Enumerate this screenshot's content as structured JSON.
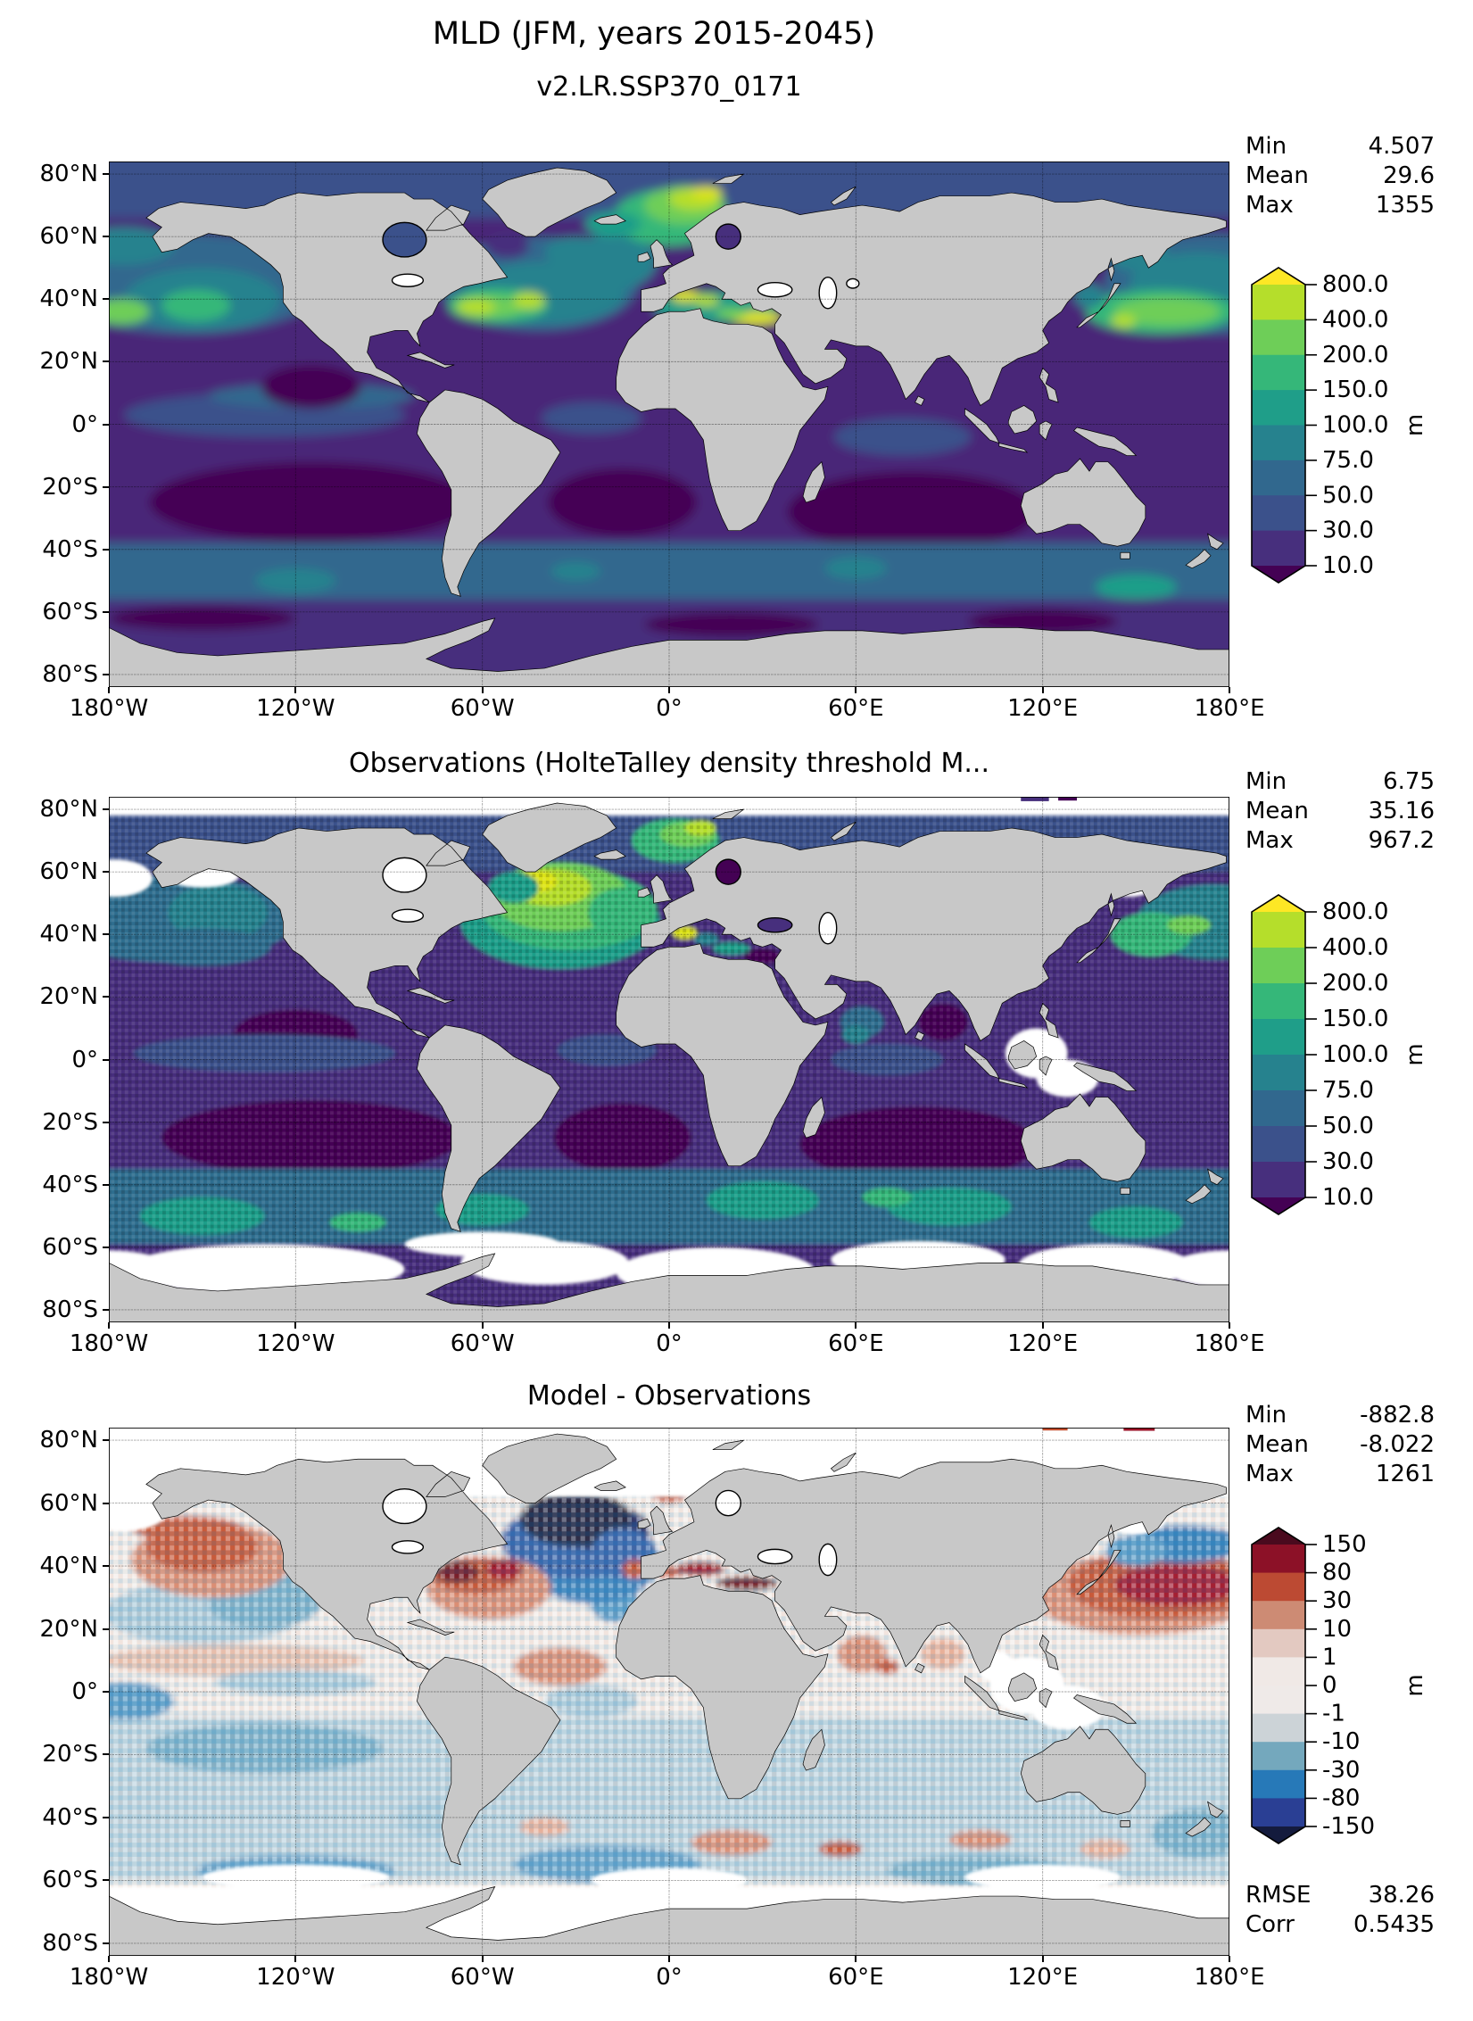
{
  "figure": {
    "title": "MLD (JFM, years 2015-2045)"
  },
  "axis": {
    "x_tick_labels": [
      "180°W",
      "120°W",
      "60°W",
      "0°",
      "60°E",
      "120°E",
      "180°E"
    ],
    "y_tick_labels": [
      "80°N",
      "60°N",
      "40°N",
      "20°N",
      "0°",
      "20°S",
      "40°S",
      "60°S",
      "80°S"
    ]
  },
  "panels": [
    {
      "id": "model",
      "title": "v2.LR.SSP370_0171",
      "stats": [
        [
          "Min",
          "4.507"
        ],
        [
          "Mean",
          "29.6"
        ],
        [
          "Max",
          "1355"
        ]
      ],
      "colorbar": "mld"
    },
    {
      "id": "obs",
      "title": "Observations (HolteTalley density threshold M...",
      "stats": [
        [
          "Min",
          "6.75"
        ],
        [
          "Mean",
          "35.16"
        ],
        [
          "Max",
          "967.2"
        ]
      ],
      "colorbar": "mld"
    },
    {
      "id": "diff",
      "title": "Model - Observations",
      "stats": [
        [
          "Min",
          "-882.8"
        ],
        [
          "Mean",
          "-8.022"
        ],
        [
          "Max",
          "1261"
        ]
      ],
      "extra_stats": [
        [
          "RMSE",
          "38.26"
        ],
        [
          "Corr",
          "0.5435"
        ]
      ],
      "colorbar": "diff"
    }
  ],
  "colorbars": {
    "mld": {
      "unit": "m",
      "tick_labels": [
        "800.0",
        "400.0",
        "200.0",
        "150.0",
        "100.0",
        "75.0",
        "50.0",
        "30.0",
        "10.0"
      ],
      "segments_top_to_bottom": [
        "#b5de2b",
        "#6ece58",
        "#35b779",
        "#1f9e89",
        "#26828e",
        "#31688e",
        "#3b518b",
        "#472f7d"
      ],
      "extend_over": "#fde725",
      "extend_under": "#440154"
    },
    "diff": {
      "unit": "m",
      "tick_labels": [
        "150",
        "80",
        "30",
        "10",
        "1",
        "0",
        "-1",
        "-10",
        "-30",
        "-80",
        "-150"
      ],
      "segments_top_to_bottom": [
        "#8c1127",
        "#bc4a33",
        "#cd8b74",
        "#e3c9c1",
        "#f0e9e6",
        "#efeae8",
        "#ccd3d7",
        "#74a8bd",
        "#2779b8",
        "#2a3f94"
      ],
      "extend_over": "#4a0a1e",
      "extend_under": "#141b3d"
    }
  },
  "colors": {
    "land": "#c8c8c8",
    "coastline": "#000000",
    "background": "#ffffff",
    "no_data": "#ffffff"
  },
  "chart_data": [
    {
      "type": "heatmap",
      "subtype": "global_map_contour",
      "title": "v2.LR.SSP370_0171",
      "variable": "MLD",
      "units": "m",
      "season": "JFM",
      "years": [
        2015,
        2045
      ],
      "stats": {
        "min": 4.507,
        "mean": 29.6,
        "max": 1355
      },
      "contour_levels": [
        10,
        30,
        50,
        75,
        100,
        150,
        200,
        400,
        800
      ],
      "colormap": "viridis-like discrete",
      "extend": "both",
      "grid": true,
      "x_ticks_deg": [
        -180,
        -120,
        -60,
        0,
        60,
        120,
        180
      ],
      "y_ticks_deg": [
        80,
        60,
        40,
        20,
        0,
        -20,
        -40,
        -60,
        -80
      ],
      "notable_features": [
        "Deep MLD 200-800 m in Gulf Stream and Kuroshio extensions near 35-40N",
        "MLD >400 m in Norwegian Sea and NW/E Mediterranean",
        "Shallow MLD <30 m across tropics and southern subtropical gyres",
        "50-150 m band in Southern Ocean 40-55S"
      ]
    },
    {
      "type": "heatmap",
      "subtype": "global_map_gridded",
      "title": "Observations (HolteTalley density threshold M...",
      "variable": "MLD",
      "units": "m",
      "stats": {
        "min": 6.75,
        "mean": 35.16,
        "max": 967.2
      },
      "contour_levels": [
        10,
        30,
        50,
        75,
        100,
        150,
        200,
        400,
        800
      ],
      "colormap": "viridis-like discrete",
      "extend": "both",
      "grid": true,
      "notable_features": [
        "Broad 200-800 m mixed layers in subpolar North Atlantic 45-65N",
        "Deep patch in Greenland/Norwegian Seas",
        "White = missing data under Arctic and Antarctic sea ice",
        "Speckled 50-150 m Southern Ocean band 35-60S"
      ]
    },
    {
      "type": "heatmap",
      "subtype": "global_map_difference",
      "title": "Model - Observations",
      "variable": "MLD bias",
      "units": "m",
      "stats": {
        "min": -882.8,
        "mean": -8.022,
        "max": 1261,
        "rmse": 38.26,
        "corr": 0.5435
      },
      "contour_levels": [
        -150,
        -80,
        -30,
        -10,
        -1,
        0,
        1,
        10,
        30,
        80,
        150
      ],
      "colormap": "blue-white-red diverging discrete",
      "extend": "both",
      "grid": true,
      "notable_features": [
        "Strong negative bias < -150 m in subpolar North Atlantic",
        "Strong positive bias > 80 m in Kuroshio region and Mediterranean",
        "Positive bias along Gulf Stream, NE Pacific and Norwegian Sea",
        "Weak negative bias over most of the Southern Hemisphere"
      ]
    }
  ]
}
